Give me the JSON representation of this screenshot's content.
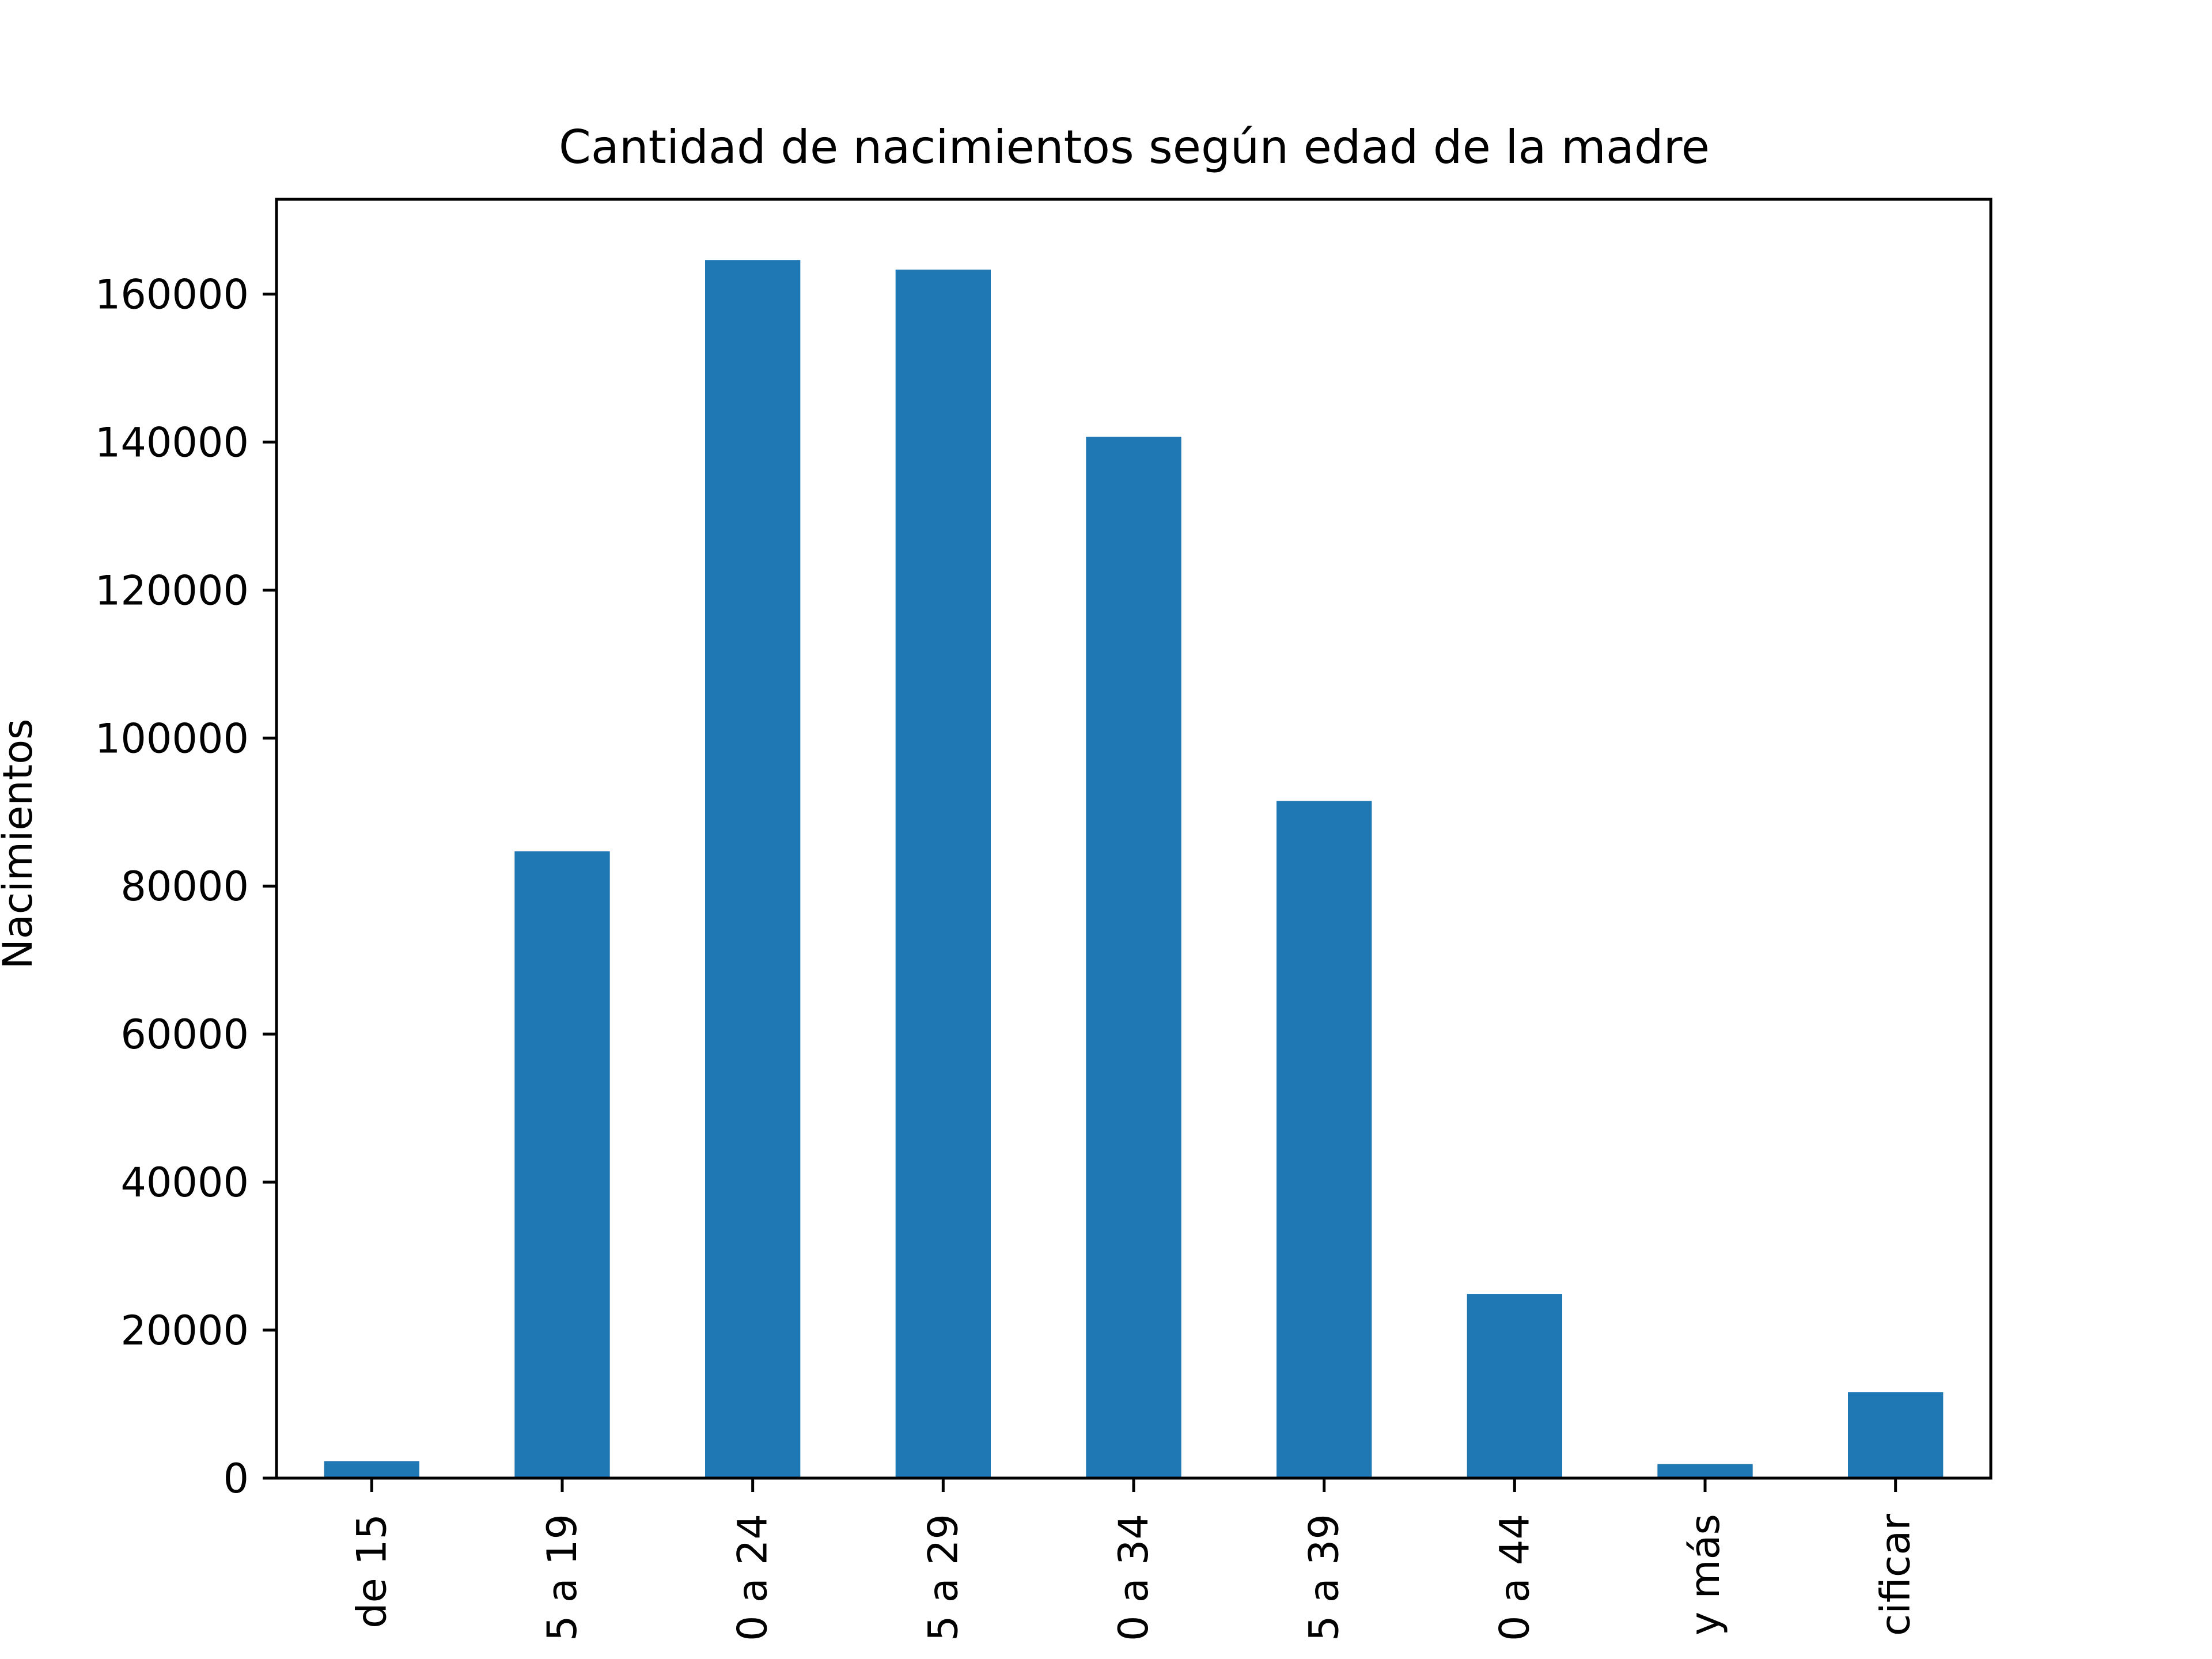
{
  "chart_data": {
    "type": "bar",
    "title": "Cantidad de nacimientos según edad de la madre",
    "xlabel": "",
    "ylabel": "Nacimientos",
    "categories": [
      "de 15",
      "5 a 19",
      "0 a 24",
      "5 a 29",
      "0 a 34",
      "5 a 39",
      "0 a 44",
      "y más",
      "cificar"
    ],
    "values": [
      2300,
      84700,
      164600,
      163300,
      140700,
      91500,
      24900,
      1900,
      11600
    ],
    "ylim": [
      0,
      172800
    ],
    "yticks": [
      0,
      20000,
      40000,
      60000,
      80000,
      100000,
      120000,
      140000,
      160000
    ],
    "ytick_labels": [
      "0",
      "20000",
      "40000",
      "60000",
      "80000",
      "100000",
      "120000",
      "140000",
      "160000"
    ],
    "bar_color": "#1f77b4",
    "grid": false,
    "legend": "none"
  }
}
